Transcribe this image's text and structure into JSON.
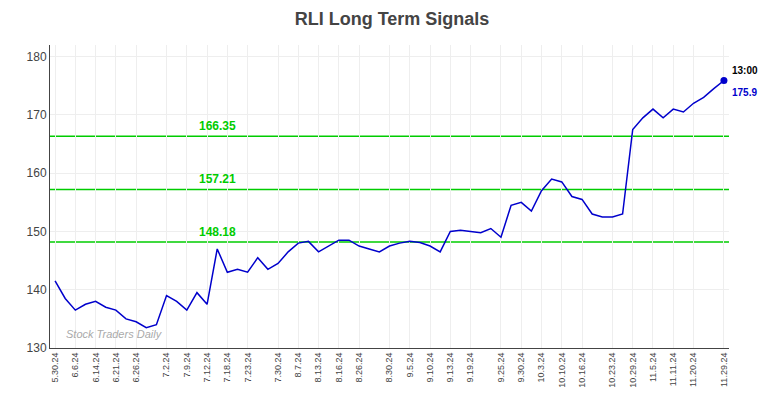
{
  "chart_data": {
    "type": "line",
    "title": "RLI Long Term Signals",
    "categories": [
      "5.30.24",
      null,
      "6.6.24",
      null,
      "6.14.24",
      null,
      "6.21.24",
      null,
      "6.26.24",
      null,
      null,
      "7.2.24",
      null,
      "7.9.24",
      null,
      "7.12.24",
      null,
      "7.18.24",
      null,
      "7.23.24",
      null,
      null,
      "7.30.24",
      null,
      "8.7.24",
      null,
      "8.13.24",
      null,
      "8.16.24",
      null,
      "8.26.24",
      null,
      null,
      "8.30.24",
      null,
      "9.5.24",
      null,
      "9.10.24",
      null,
      "9.13.24",
      null,
      "9.19.24",
      null,
      null,
      "9.25.24",
      null,
      "9.30.24",
      null,
      "10.3.24",
      null,
      "10.10.24",
      null,
      "10.16.24",
      null,
      null,
      "10.23.24",
      null,
      "10.29.24",
      null,
      "11.5.24",
      null,
      "11.11.24",
      null,
      "11.20.24",
      null,
      null,
      "11.29.24"
    ],
    "values": [
      141.5,
      138.5,
      136.5,
      137.5,
      138.0,
      137.0,
      136.5,
      135.0,
      134.5,
      133.5,
      134.0,
      139.0,
      138.0,
      136.5,
      139.5,
      137.5,
      147.0,
      143.0,
      143.5,
      143.0,
      145.5,
      143.5,
      144.5,
      146.5,
      148.0,
      148.3,
      146.5,
      147.5,
      148.5,
      148.5,
      147.5,
      147.0,
      146.5,
      147.5,
      148.0,
      148.3,
      148.1,
      147.5,
      146.5,
      150.0,
      150.2,
      150.0,
      149.8,
      150.5,
      149.0,
      154.5,
      155.0,
      153.5,
      157.0,
      159.0,
      158.5,
      156.0,
      155.5,
      153.0,
      152.5,
      152.5,
      153.0,
      167.5,
      169.5,
      171.0,
      169.5,
      171.0,
      170.5,
      172.0,
      173.0,
      174.5,
      175.9
    ],
    "color": "#0000cc",
    "ylim": [
      130,
      182
    ],
    "yticks": [
      130,
      140,
      150,
      160,
      170,
      180
    ],
    "grid": true,
    "reference_lines": [
      {
        "y": 148.18,
        "label": "148.18",
        "color": "#00cc00"
      },
      {
        "y": 157.21,
        "label": "157.21",
        "color": "#00cc00"
      },
      {
        "y": 166.35,
        "label": "166.35",
        "color": "#00cc00"
      }
    ],
    "annotations": [
      {
        "text": "13:00",
        "color": "#000000"
      },
      {
        "text": "175.9",
        "color": "#0000cc"
      }
    ],
    "watermark": {
      "text": "Stock Traders Daily",
      "color": "#aaaaaa"
    }
  }
}
